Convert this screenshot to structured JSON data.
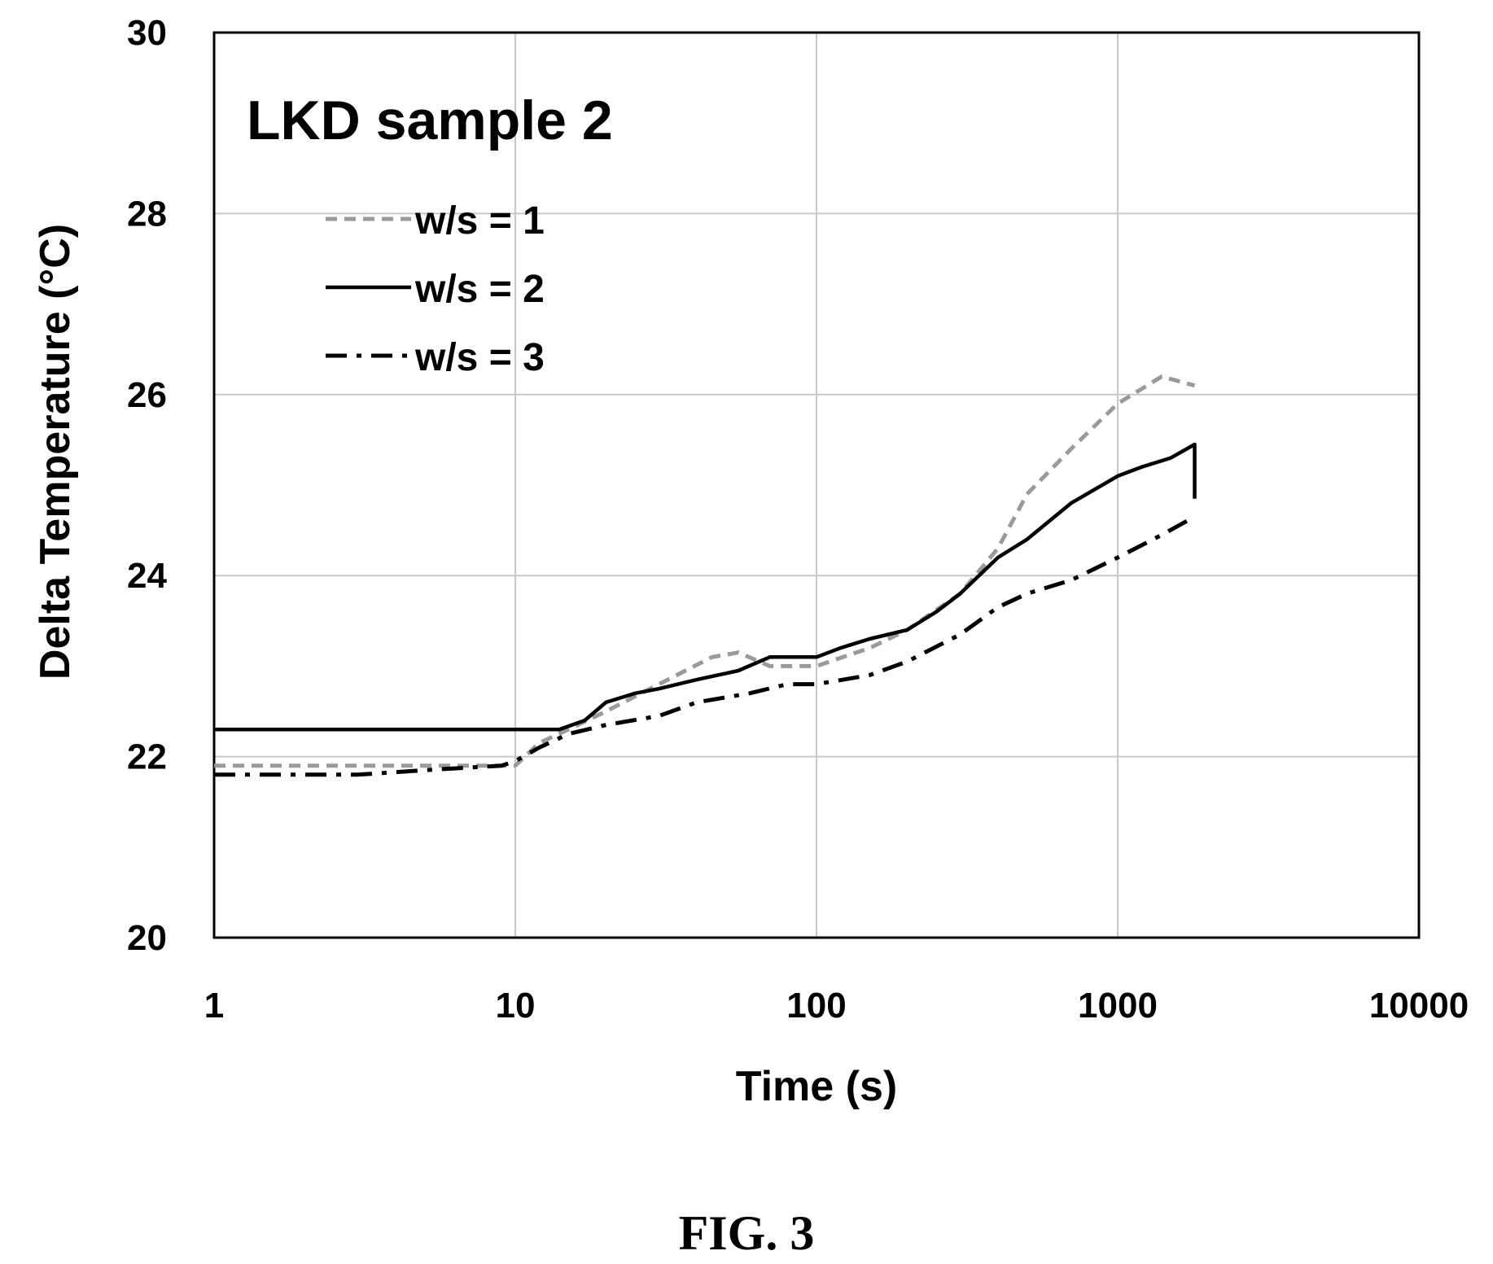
{
  "chart_data": {
    "type": "line",
    "title": "LKD sample 2",
    "xlabel": "Time (s)",
    "ylabel": "Delta Temperature (°C)",
    "xscale": "log",
    "xlim": [
      1,
      10000
    ],
    "ylim": [
      20,
      30
    ],
    "xticks": [
      "1",
      "10",
      "100",
      "1000",
      "10000"
    ],
    "yticks": [
      "20",
      "22",
      "24",
      "26",
      "28",
      "30"
    ],
    "grid": true,
    "legend_position": "upper-left",
    "series": [
      {
        "name": "w/s = 1",
        "style": "dashed",
        "color": "#9a9a9a",
        "x": [
          1,
          2,
          5,
          9,
          10,
          12,
          15,
          20,
          30,
          45,
          55,
          70,
          100,
          150,
          200,
          300,
          400,
          500,
          700,
          1000,
          1400,
          1800
        ],
        "y": [
          21.9,
          21.9,
          21.9,
          21.9,
          21.9,
          22.15,
          22.3,
          22.5,
          22.8,
          23.1,
          23.15,
          23.0,
          23.0,
          23.2,
          23.4,
          23.8,
          24.3,
          24.9,
          25.4,
          25.9,
          26.2,
          26.1
        ]
      },
      {
        "name": "w/s = 2",
        "style": "solid",
        "color": "#000000",
        "x": [
          1,
          5,
          10,
          14,
          17,
          20,
          25,
          30,
          40,
          55,
          70,
          100,
          120,
          150,
          200,
          250,
          300,
          400,
          500,
          700,
          1000,
          1200,
          1500,
          1800,
          1800
        ],
        "y": [
          22.3,
          22.3,
          22.3,
          22.3,
          22.4,
          22.6,
          22.7,
          22.75,
          22.85,
          22.95,
          23.1,
          23.1,
          23.2,
          23.3,
          23.4,
          23.6,
          23.8,
          24.2,
          24.4,
          24.8,
          25.1,
          25.2,
          25.3,
          25.45,
          24.85
        ]
      },
      {
        "name": "w/s = 3",
        "style": "dash-dot",
        "color": "#000000",
        "x": [
          1,
          3,
          5,
          9,
          10,
          12,
          15,
          20,
          30,
          40,
          60,
          80,
          100,
          150,
          200,
          300,
          400,
          500,
          700,
          1000,
          1400,
          1800
        ],
        "y": [
          21.8,
          21.8,
          21.85,
          21.9,
          21.95,
          22.1,
          22.25,
          22.35,
          22.45,
          22.6,
          22.7,
          22.8,
          22.8,
          22.9,
          23.05,
          23.35,
          23.65,
          23.8,
          23.95,
          24.2,
          24.45,
          24.65
        ]
      }
    ]
  },
  "caption": "FIG. 3"
}
